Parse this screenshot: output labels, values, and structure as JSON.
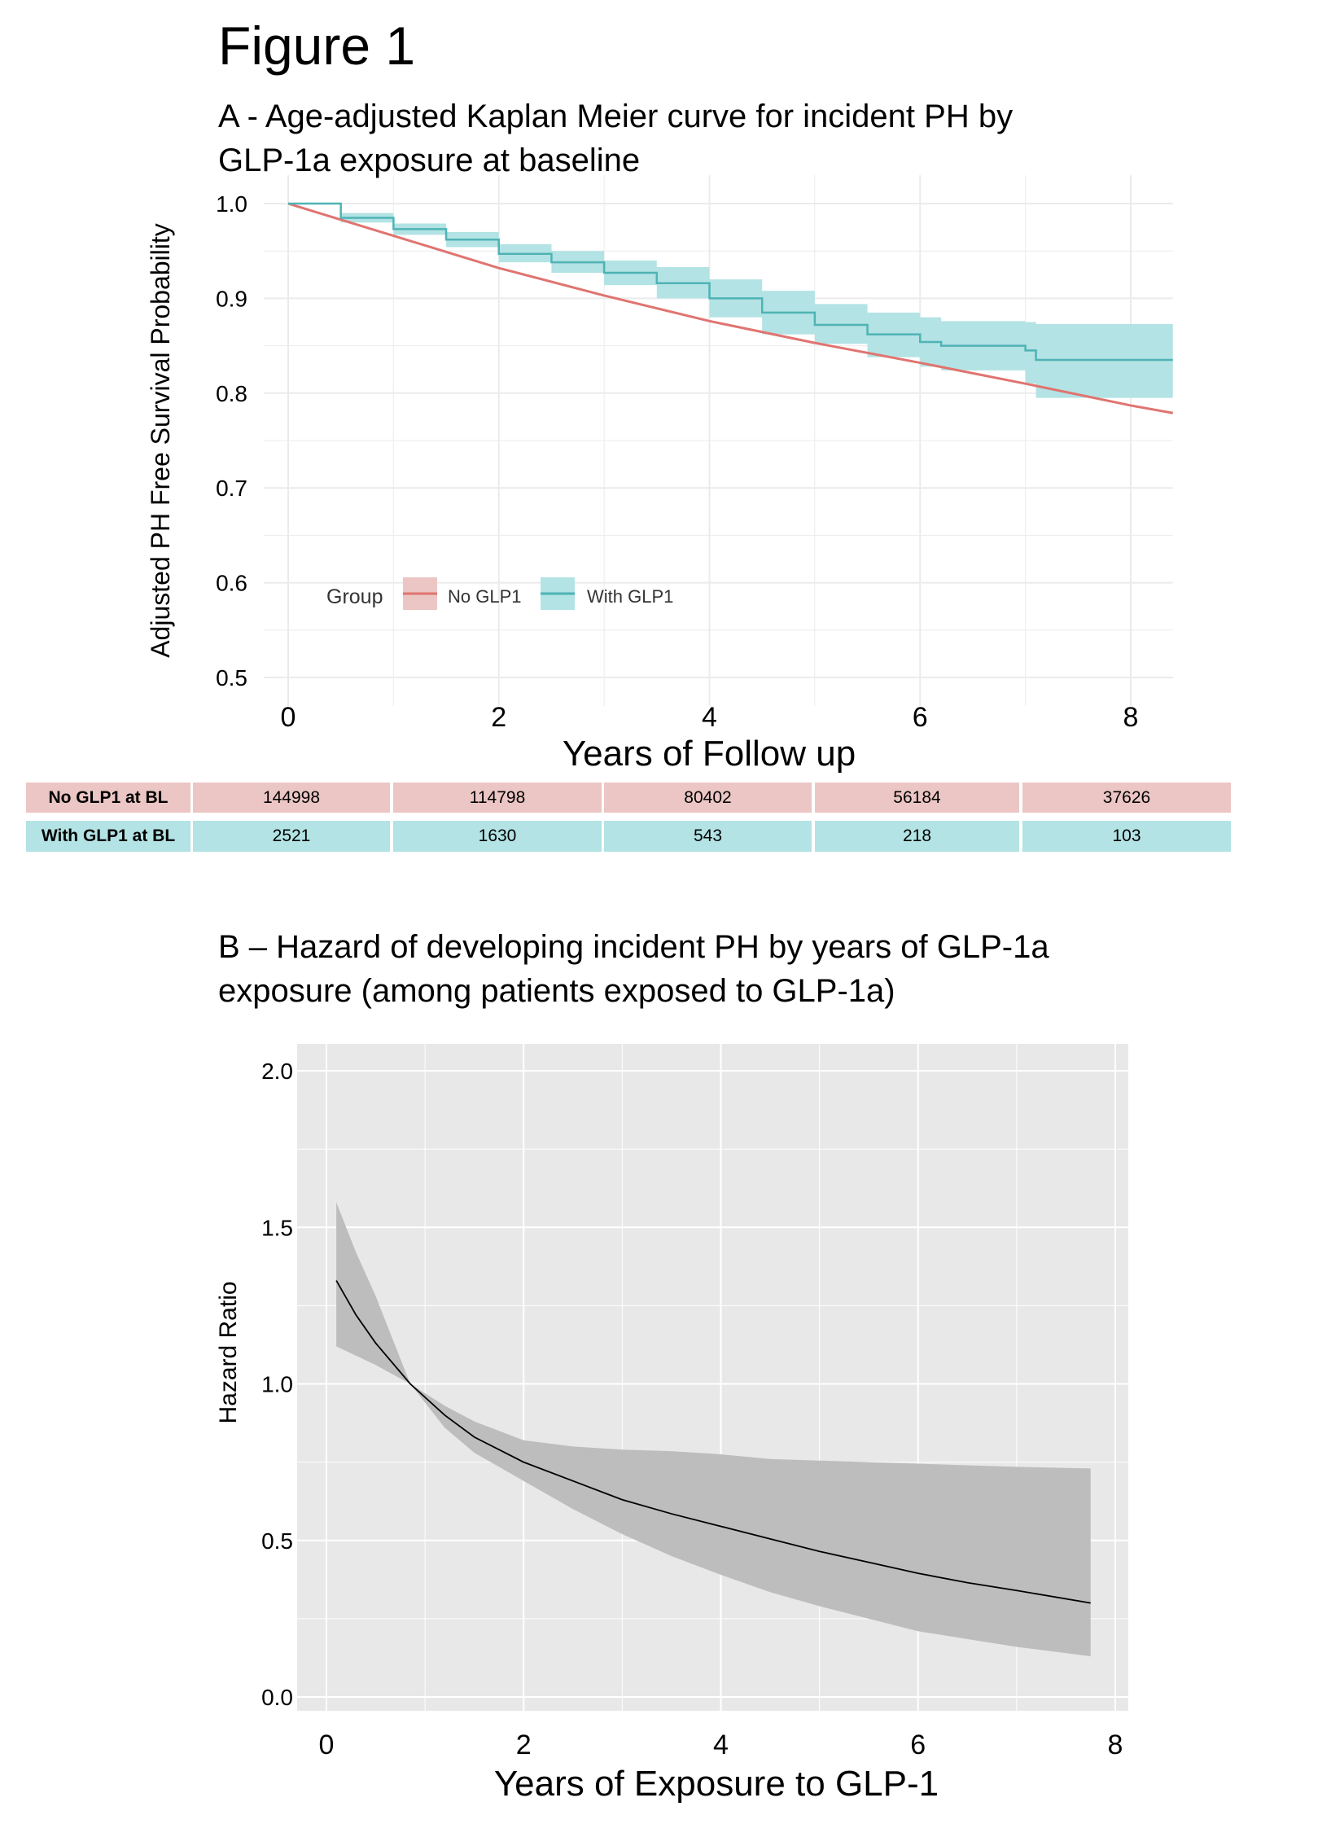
{
  "figure_title": "Figure 1",
  "panel_a_title_line1": "A - Age-adjusted Kaplan Meier curve for incident PH by",
  "panel_a_title_line2": "GLP-1a exposure at baseline",
  "panel_b_title_line1": "B – Hazard of developing incident PH by years of GLP-1a",
  "panel_b_title_line2": "exposure (among patients exposed to GLP-1a)",
  "colors": {
    "no_glp1": "#e07470",
    "with_glp1": "#4fb3b5",
    "with_glp1_band": "#b3e3e4",
    "hr_band": "#bdbdbd",
    "panel_b_bg": "#e8e8e8"
  },
  "risk_table": {
    "rows": [
      {
        "label": "No GLP1 at BL",
        "values": [
          "144998",
          "114798",
          "80402",
          "56184",
          "37626"
        ]
      },
      {
        "label": "With GLP1 at BL",
        "values": [
          "2521",
          "1630",
          "543",
          "218",
          "103"
        ]
      }
    ]
  },
  "chart_data": [
    {
      "type": "line",
      "title": "A - Age-adjusted Kaplan Meier curve for incident PH by GLP-1a exposure at baseline",
      "xlabel": "Years of Follow up",
      "ylabel": "Adjusted PH Free Survival Probability",
      "xlim": [
        0,
        8.4
      ],
      "ylim": [
        0.5,
        1.0
      ],
      "xticks": [
        "0",
        "2",
        "4",
        "6",
        "8"
      ],
      "yticks": [
        "0.5",
        "0.6",
        "0.7",
        "0.8",
        "0.9",
        "1.0"
      ],
      "grid": true,
      "legend": {
        "title": "Group",
        "position": "bottom-left",
        "entries": [
          "No GLP1",
          "With GLP1"
        ]
      },
      "series": [
        {
          "name": "No GLP1",
          "x": [
            0,
            1,
            2,
            3,
            4,
            5,
            6,
            7,
            8,
            8.4
          ],
          "y": [
            1.0,
            0.966,
            0.932,
            0.903,
            0.876,
            0.853,
            0.832,
            0.81,
            0.787,
            0.779
          ]
        },
        {
          "name": "With GLP1",
          "step": true,
          "x": [
            0,
            0.5,
            1,
            1.5,
            2,
            2.5,
            3,
            3.5,
            4,
            4.5,
            5,
            5.5,
            6,
            6.2,
            7,
            7.1,
            8.4
          ],
          "y": [
            1.0,
            0.985,
            0.973,
            0.962,
            0.947,
            0.938,
            0.927,
            0.916,
            0.9,
            0.885,
            0.872,
            0.862,
            0.854,
            0.85,
            0.845,
            0.835,
            0.835
          ],
          "lower": [
            1.0,
            0.98,
            0.967,
            0.954,
            0.938,
            0.927,
            0.914,
            0.9,
            0.88,
            0.862,
            0.852,
            0.838,
            0.828,
            0.824,
            0.81,
            0.795,
            0.795
          ],
          "upper": [
            1.0,
            0.99,
            0.979,
            0.97,
            0.957,
            0.95,
            0.94,
            0.933,
            0.92,
            0.908,
            0.894,
            0.885,
            0.88,
            0.876,
            0.875,
            0.873,
            0.873
          ]
        }
      ]
    },
    {
      "type": "line",
      "title": "B – Hazard of developing incident PH by years of GLP-1a exposure (among patients exposed to GLP-1a)",
      "xlabel": "Years of Exposure to GLP-1",
      "ylabel": "Hazard Ratio",
      "xlim": [
        -0.3,
        8.15
      ],
      "ylim": [
        -0.05,
        2.05
      ],
      "xticks": [
        "0",
        "2",
        "4",
        "6",
        "8"
      ],
      "yticks": [
        "0.0",
        "0.5",
        "1.0",
        "1.5",
        "2.0"
      ],
      "grid": true,
      "series": [
        {
          "name": "Hazard Ratio",
          "x": [
            0.1,
            0.3,
            0.5,
            0.85,
            1.2,
            1.5,
            2,
            2.5,
            3,
            3.5,
            4,
            4.5,
            5,
            5.5,
            6,
            6.5,
            7,
            7.75
          ],
          "y": [
            1.33,
            1.22,
            1.13,
            1.0,
            0.9,
            0.83,
            0.75,
            0.69,
            0.63,
            0.585,
            0.545,
            0.505,
            0.465,
            0.43,
            0.395,
            0.365,
            0.34,
            0.3
          ],
          "lower": [
            1.12,
            1.09,
            1.06,
            1.0,
            0.86,
            0.78,
            0.69,
            0.6,
            0.52,
            0.45,
            0.39,
            0.335,
            0.29,
            0.25,
            0.21,
            0.185,
            0.16,
            0.13
          ],
          "upper": [
            1.58,
            1.42,
            1.28,
            1.0,
            0.93,
            0.88,
            0.82,
            0.8,
            0.79,
            0.785,
            0.775,
            0.76,
            0.755,
            0.75,
            0.745,
            0.74,
            0.735,
            0.73
          ]
        }
      ]
    }
  ]
}
